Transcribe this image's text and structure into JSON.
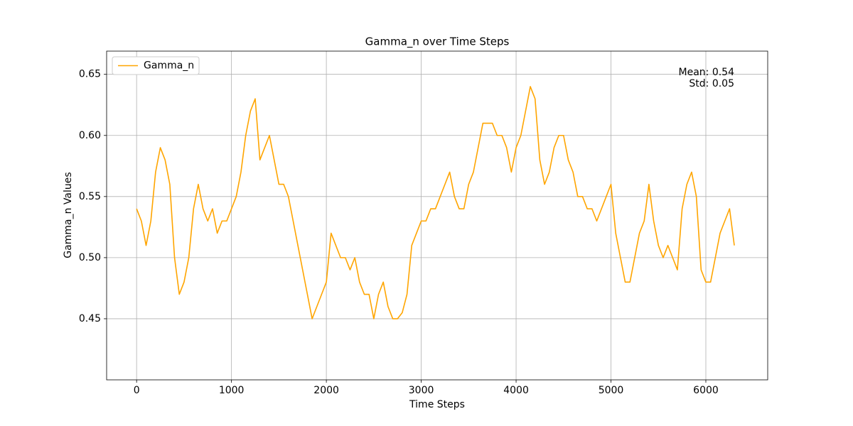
{
  "chart_data": {
    "type": "line",
    "title": "Gamma_n over Time Steps",
    "x_label": "Time Steps",
    "y_label": "Gamma_n Values",
    "annotations": [
      "Mean: 0.54",
      "Std: 0.05"
    ],
    "x": [
      0,
      50,
      100,
      150,
      200,
      250,
      300,
      350,
      400,
      450,
      500,
      550,
      600,
      650,
      700,
      750,
      800,
      850,
      900,
      950,
      1000,
      1050,
      1100,
      1150,
      1200,
      1250,
      1300,
      1350,
      1400,
      1450,
      1500,
      1550,
      1600,
      1650,
      1700,
      1750,
      1800,
      1850,
      1900,
      1950,
      2000,
      2050,
      2100,
      2150,
      2200,
      2250,
      2300,
      2350,
      2400,
      2450,
      2500,
      2550,
      2600,
      2650,
      2700,
      2750,
      2800,
      2850,
      2900,
      2950,
      3000,
      3050,
      3100,
      3150,
      3200,
      3250,
      3300,
      3350,
      3400,
      3450,
      3500,
      3550,
      3600,
      3650,
      3700,
      3750,
      3800,
      3850,
      3900,
      3950,
      4000,
      4050,
      4100,
      4150,
      4200,
      4250,
      4300,
      4350,
      4400,
      4450,
      4500,
      4550,
      4600,
      4650,
      4700,
      4750,
      4800,
      4850,
      4900,
      4950,
      5000,
      5050,
      5100,
      5150,
      5200,
      5250,
      5300,
      5350,
      5400,
      5450,
      5500,
      5550,
      5600,
      5650,
      5700,
      5750,
      5800,
      5850,
      5900,
      5950,
      6000,
      6050,
      6100,
      6150,
      6200,
      6250,
      6300
    ],
    "series": [
      {
        "name": "Gamma_n",
        "color": "orange",
        "values": [
          0.54,
          0.53,
          0.51,
          0.53,
          0.57,
          0.59,
          0.58,
          0.56,
          0.5,
          0.47,
          0.48,
          0.5,
          0.54,
          0.56,
          0.54,
          0.53,
          0.54,
          0.52,
          0.53,
          0.53,
          0.54,
          0.55,
          0.57,
          0.6,
          0.62,
          0.63,
          0.58,
          0.59,
          0.6,
          0.58,
          0.56,
          0.56,
          0.55,
          0.53,
          0.51,
          0.49,
          0.47,
          0.45,
          0.46,
          0.47,
          0.48,
          0.52,
          0.51,
          0.5,
          0.5,
          0.49,
          0.5,
          0.48,
          0.47,
          0.47,
          0.45,
          0.47,
          0.48,
          0.46,
          0.45,
          0.45,
          0.455,
          0.47,
          0.51,
          0.52,
          0.53,
          0.53,
          0.54,
          0.54,
          0.55,
          0.56,
          0.57,
          0.55,
          0.54,
          0.54,
          0.56,
          0.57,
          0.59,
          0.61,
          0.61,
          0.61,
          0.6,
          0.6,
          0.59,
          0.57,
          0.59,
          0.6,
          0.62,
          0.64,
          0.63,
          0.58,
          0.56,
          0.57,
          0.59,
          0.6,
          0.6,
          0.58,
          0.57,
          0.55,
          0.55,
          0.54,
          0.54,
          0.53,
          0.54,
          0.55,
          0.56,
          0.52,
          0.5,
          0.48,
          0.48,
          0.5,
          0.52,
          0.53,
          0.56,
          0.53,
          0.51,
          0.5,
          0.51,
          0.5,
          0.49,
          0.54,
          0.56,
          0.57,
          0.55,
          0.49,
          0.48,
          0.48,
          0.5,
          0.52,
          0.53,
          0.54,
          0.51
        ]
      }
    ],
    "xlim": [
      -316,
      6652
    ],
    "ylim": [
      0.4,
      0.669
    ],
    "xticks": [
      0,
      1000,
      2000,
      3000,
      4000,
      5000,
      6000
    ],
    "yticks": [
      0.45,
      {
        "value": 0.5,
        "label": "0.50"
      },
      0.55,
      {
        "value": 0.6,
        "label": "0.60"
      },
      0.65
    ],
    "grid": true,
    "legend": "upper left"
  }
}
